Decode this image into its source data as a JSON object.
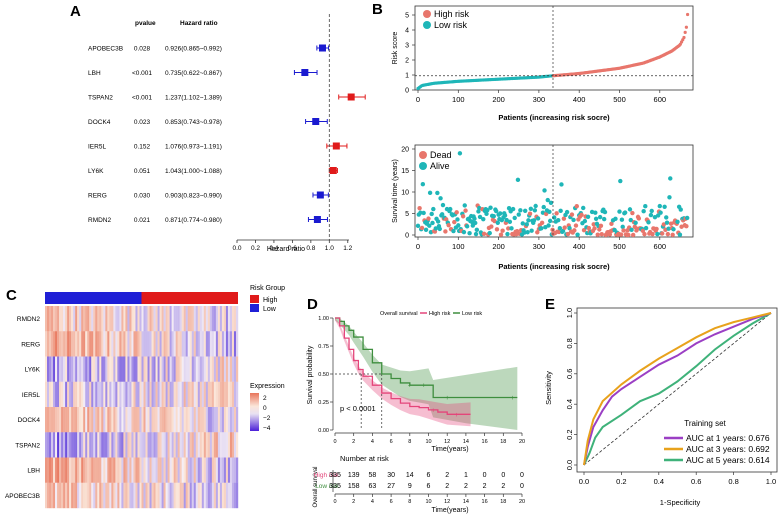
{
  "colors": {
    "high": "#e8766c",
    "low": "#1fb6b8",
    "forest_low": "#1a1ad0",
    "forest_high": "#e01a1a",
    "km_high": "#e4457a",
    "km_low": "#3e8e3e",
    "auc1": "#9b3fc4",
    "auc3": "#e8a21c",
    "auc5": "#3fb27a"
  },
  "panels": {
    "a": "A",
    "b": "B",
    "c": "C",
    "d": "D",
    "e": "E"
  },
  "chart_data": [
    {
      "panel": "A",
      "type": "forest",
      "col_headers": {
        "pvalue": "pvalue",
        "hr": "Hazard ratio"
      },
      "xlabel": "Hazard ratio",
      "ticks": [
        "0.0",
        "0.2",
        "0.4",
        "0.6",
        "0.8",
        "1.0",
        "1.2"
      ],
      "xlim": [
        0,
        1.3
      ],
      "reference": 1.0,
      "rows": [
        {
          "gene": "APOBEC3B",
          "p": "0.028",
          "hr_text": "0.926(0.865~0.992)",
          "hr": 0.926,
          "lo": 0.865,
          "hi": 0.992
        },
        {
          "gene": "LBH",
          "p": "<0.001",
          "hr_text": "0.735(0.622~0.867)",
          "hr": 0.735,
          "lo": 0.622,
          "hi": 0.867
        },
        {
          "gene": "TSPAN2",
          "p": "<0.001",
          "hr_text": "1.237(1.102~1.389)",
          "hr": 1.237,
          "lo": 1.102,
          "hi": 1.389
        },
        {
          "gene": "DOCK4",
          "p": "0.023",
          "hr_text": "0.853(0.743~0.978)",
          "hr": 0.853,
          "lo": 0.743,
          "hi": 0.978
        },
        {
          "gene": "IER5L",
          "p": "0.152",
          "hr_text": "1.076(0.973~1.191)",
          "hr": 1.076,
          "lo": 0.973,
          "hi": 1.191
        },
        {
          "gene": "LY6K",
          "p": "0.051",
          "hr_text": "1.043(1.000~1.088)",
          "hr": 1.043,
          "lo": 1.0,
          "hi": 1.088
        },
        {
          "gene": "RERG",
          "p": "0.030",
          "hr_text": "0.903(0.823~0.990)",
          "hr": 0.903,
          "lo": 0.823,
          "hi": 0.99
        },
        {
          "gene": "RMDN2",
          "p": "0.021",
          "hr_text": "0.871(0.774~0.980)",
          "hr": 0.871,
          "lo": 0.774,
          "hi": 0.98
        }
      ]
    },
    {
      "panel": "B-top",
      "type": "scatter",
      "ylabel": "Risk score",
      "xlabel": "Patients (increasing risk socre)",
      "legend": [
        "High risk",
        "Low risk"
      ],
      "xlim": [
        0,
        670
      ],
      "ylim": [
        0,
        5.6
      ],
      "xticks": [
        "0",
        "100",
        "200",
        "300",
        "400",
        "500",
        "600"
      ],
      "yticks": [
        "0",
        "1",
        "2",
        "3",
        "4",
        "5"
      ],
      "cutoff_x": 335,
      "cutoff_y": 0.95,
      "n_patients": 670,
      "curve": [
        [
          0,
          0.1
        ],
        [
          10,
          0.3
        ],
        [
          40,
          0.45
        ],
        [
          100,
          0.58
        ],
        [
          200,
          0.72
        ],
        [
          300,
          0.86
        ],
        [
          335,
          0.95
        ],
        [
          400,
          1.1
        ],
        [
          500,
          1.45
        ],
        [
          560,
          1.8
        ],
        [
          600,
          2.2
        ],
        [
          630,
          2.6
        ],
        [
          650,
          3.0
        ],
        [
          660,
          3.5
        ],
        [
          667,
          4.3
        ],
        [
          670,
          5.4
        ]
      ]
    },
    {
      "panel": "B-bottom",
      "type": "scatter",
      "ylabel": "Survival time (years)",
      "xlabel": "Patients (increasing risk socre)",
      "legend": [
        "Dead",
        "Alive"
      ],
      "xlim": [
        0,
        670
      ],
      "ylim": [
        0,
        20
      ],
      "xticks": [
        "0",
        "100",
        "200",
        "300",
        "400",
        "500",
        "600"
      ],
      "yticks": [
        "0",
        "5",
        "10",
        "15",
        "20"
      ],
      "cutoff_x": 335
    },
    {
      "panel": "C",
      "type": "heatmap",
      "rows": [
        "RMDN2",
        "RERG",
        "LY6K",
        "IER5L",
        "DOCK4",
        "TSPAN2",
        "LBH",
        "APOBEC3B"
      ],
      "n_cols": 670,
      "low_count": 335,
      "legend_group_title": "Risk Group",
      "legend_groups": [
        "High",
        "Low"
      ],
      "legend_expr_title": "Expression",
      "legend_expr_ticks": [
        "2",
        "0",
        "−2",
        "−4"
      ]
    },
    {
      "panel": "D",
      "type": "line",
      "legend_title": "Overall survival",
      "legend": [
        "High risk",
        "Low risk"
      ],
      "ylabel": "Survival probability",
      "xlabel": "Time(years)",
      "pvalue": "p < 0.0001",
      "xlim": [
        0,
        20
      ],
      "ylim": [
        0,
        1
      ],
      "xticks": [
        "0",
        "2",
        "4",
        "6",
        "8",
        "10",
        "12",
        "14",
        "16",
        "18",
        "20"
      ],
      "yticks": [
        "0.00",
        "0.25",
        "0.50",
        "0.75",
        "1.00"
      ],
      "median_high": 2.8,
      "median_low": 5.0,
      "high_curve": [
        [
          0,
          1.0
        ],
        [
          0.5,
          0.93
        ],
        [
          1,
          0.82
        ],
        [
          1.5,
          0.72
        ],
        [
          2,
          0.62
        ],
        [
          2.5,
          0.54
        ],
        [
          3,
          0.48
        ],
        [
          4,
          0.4
        ],
        [
          5,
          0.33
        ],
        [
          6,
          0.28
        ],
        [
          7,
          0.24
        ],
        [
          8,
          0.21
        ],
        [
          9,
          0.2
        ],
        [
          10,
          0.18
        ],
        [
          11,
          0.16
        ],
        [
          12,
          0.14
        ],
        [
          14.5,
          0.14
        ]
      ],
      "low_curve": [
        [
          0,
          1.0
        ],
        [
          0.5,
          0.97
        ],
        [
          1,
          0.93
        ],
        [
          1.5,
          0.89
        ],
        [
          2,
          0.83
        ],
        [
          3,
          0.72
        ],
        [
          4,
          0.6
        ],
        [
          5,
          0.5
        ],
        [
          6,
          0.46
        ],
        [
          7,
          0.42
        ],
        [
          8,
          0.4
        ],
        [
          9,
          0.4
        ],
        [
          10,
          0.4
        ],
        [
          10.5,
          0.29
        ],
        [
          14,
          0.29
        ],
        [
          19.5,
          0.29
        ]
      ],
      "risk_table_title": "Number at risk",
      "risk_table_ylabel": "Overall survival",
      "risk_table_xlabel": "Time(years)",
      "risk_table": [
        {
          "label": "High risk",
          "values": [
            "335",
            "139",
            "58",
            "30",
            "14",
            "6",
            "2",
            "1",
            "0",
            "0",
            "0"
          ]
        },
        {
          "label": "Low risk",
          "values": [
            "335",
            "158",
            "63",
            "27",
            "9",
            "6",
            "2",
            "2",
            "2",
            "2",
            "0"
          ]
        }
      ]
    },
    {
      "panel": "E",
      "type": "line",
      "xlabel": "1-Specificity",
      "ylabel": "Sensitivity",
      "xlim": [
        0,
        1
      ],
      "ylim": [
        0,
        1
      ],
      "ticks": [
        "0.0",
        "0.2",
        "0.4",
        "0.6",
        "0.8",
        "1.0"
      ],
      "legend_title": "Training set",
      "series": [
        {
          "name": "AUC at 1 years: 0.676",
          "points": [
            [
              0,
              0
            ],
            [
              0.02,
              0.12
            ],
            [
              0.05,
              0.25
            ],
            [
              0.1,
              0.36
            ],
            [
              0.15,
              0.45
            ],
            [
              0.2,
              0.5
            ],
            [
              0.3,
              0.58
            ],
            [
              0.4,
              0.66
            ],
            [
              0.5,
              0.72
            ],
            [
              0.6,
              0.8
            ],
            [
              0.7,
              0.86
            ],
            [
              0.8,
              0.91
            ],
            [
              0.9,
              0.96
            ],
            [
              1,
              1
            ]
          ]
        },
        {
          "name": "AUC at 3 years: 0.692",
          "points": [
            [
              0,
              0
            ],
            [
              0.02,
              0.16
            ],
            [
              0.05,
              0.3
            ],
            [
              0.1,
              0.42
            ],
            [
              0.2,
              0.53
            ],
            [
              0.3,
              0.62
            ],
            [
              0.4,
              0.7
            ],
            [
              0.5,
              0.77
            ],
            [
              0.6,
              0.84
            ],
            [
              0.7,
              0.9
            ],
            [
              0.8,
              0.94
            ],
            [
              0.9,
              0.97
            ],
            [
              1,
              1
            ]
          ]
        },
        {
          "name": "AUC at 5 years: 0.614",
          "points": [
            [
              0,
              0
            ],
            [
              0.03,
              0.08
            ],
            [
              0.06,
              0.18
            ],
            [
              0.1,
              0.25
            ],
            [
              0.2,
              0.33
            ],
            [
              0.3,
              0.42
            ],
            [
              0.4,
              0.47
            ],
            [
              0.5,
              0.55
            ],
            [
              0.6,
              0.65
            ],
            [
              0.7,
              0.76
            ],
            [
              0.8,
              0.85
            ],
            [
              0.9,
              0.93
            ],
            [
              1,
              1
            ]
          ]
        }
      ]
    }
  ]
}
